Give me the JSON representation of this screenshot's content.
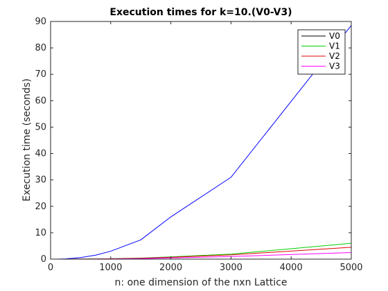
{
  "chart_data": {
    "type": "line",
    "title": "Execution times for k=10.(V0-V3)",
    "xlabel": "n: one dimension of the nxn Lattice",
    "ylabel": "Execution time (seconds)",
    "xlim": [
      0,
      5000
    ],
    "ylim": [
      0,
      90
    ],
    "xticks": [
      0,
      1000,
      2000,
      3000,
      4000,
      5000
    ],
    "yticks": [
      0,
      10,
      20,
      30,
      40,
      50,
      60,
      70,
      80,
      90
    ],
    "grid": false,
    "legend_position": "top-right",
    "x": [
      100,
      250,
      500,
      750,
      1000,
      1500,
      2000,
      3000,
      5000
    ],
    "series": [
      {
        "name": "V0",
        "legend_color": "#000000",
        "color": "#0000ff",
        "values": [
          0.01,
          0.1,
          0.6,
          1.5,
          3.0,
          7.3,
          16.0,
          31.0,
          88.5
        ]
      },
      {
        "name": "V1",
        "color": "#00d000",
        "values": [
          0.0,
          0.01,
          0.03,
          0.07,
          0.15,
          0.4,
          0.85,
          1.9,
          6.0
        ]
      },
      {
        "name": "V2",
        "color": "#e00000",
        "values": [
          0.0,
          0.01,
          0.03,
          0.06,
          0.12,
          0.33,
          0.7,
          1.6,
          4.5
        ]
      },
      {
        "name": "V3",
        "color": "#ff00ff",
        "values": [
          0.0,
          0.01,
          0.02,
          0.04,
          0.08,
          0.2,
          0.45,
          1.0,
          2.5
        ]
      }
    ]
  }
}
